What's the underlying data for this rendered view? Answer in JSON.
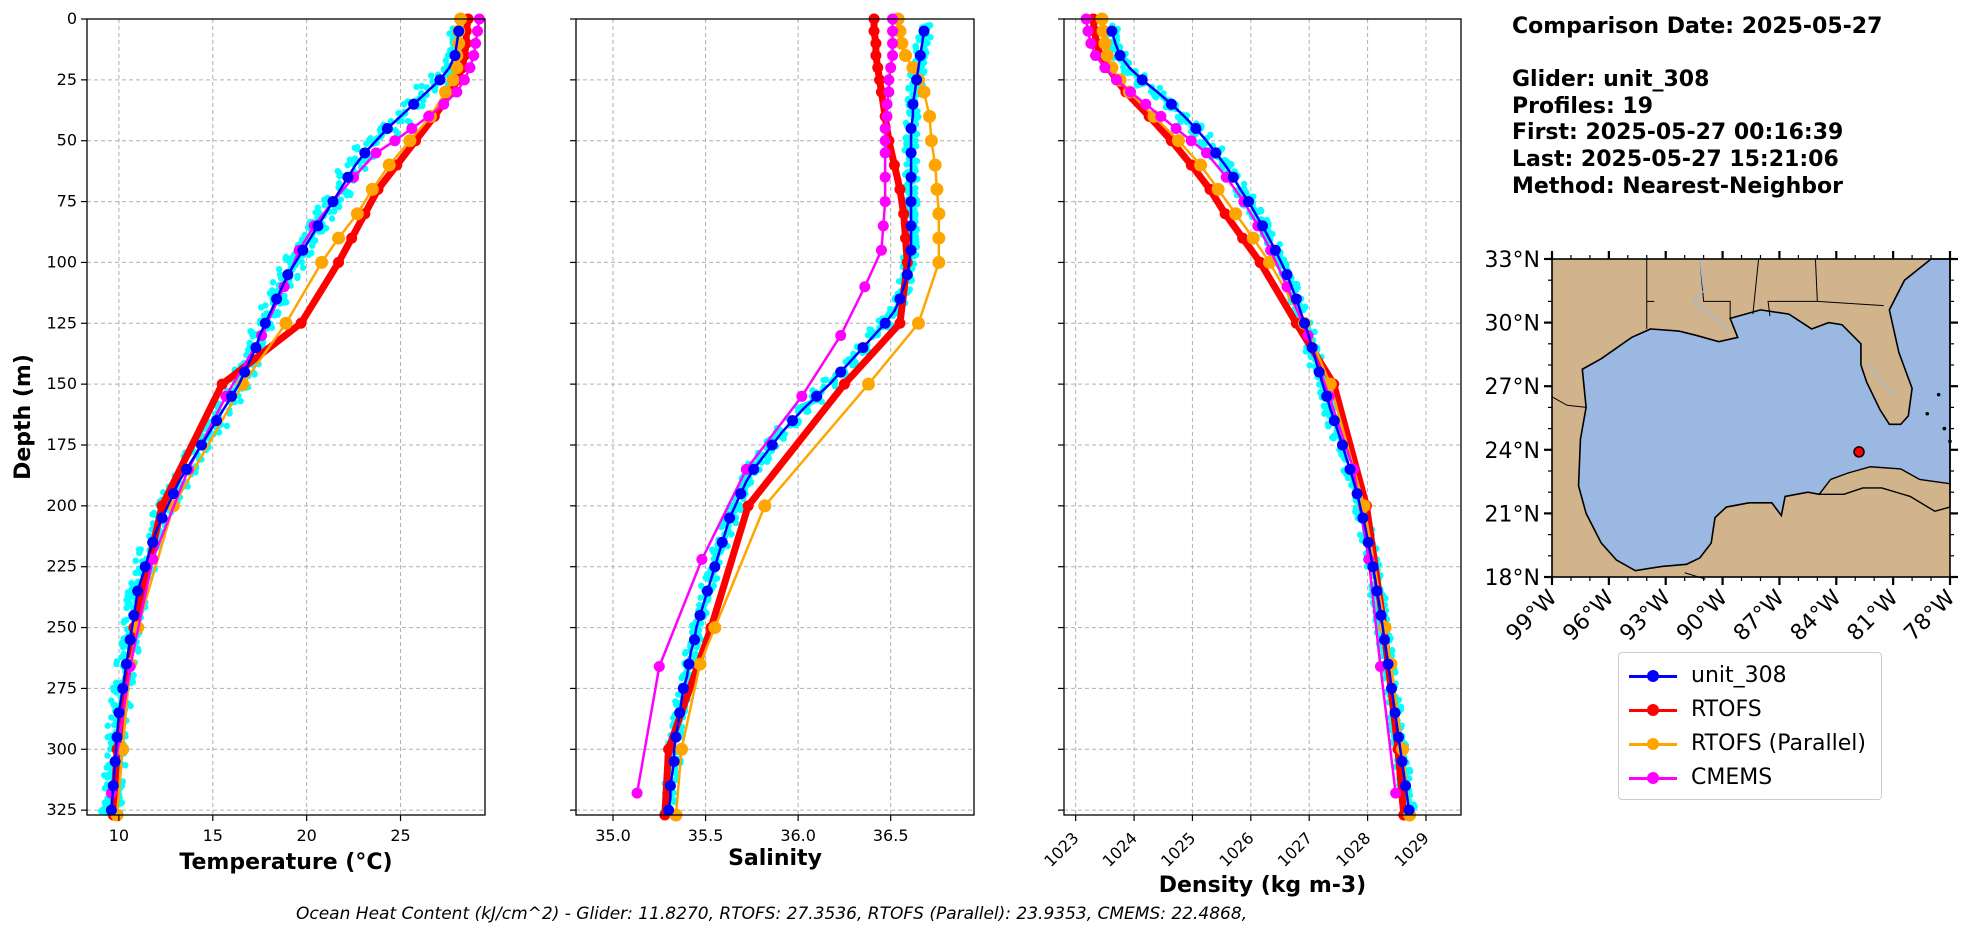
{
  "info": {
    "comparison_date": "Comparison Date: 2025-05-27",
    "glider": "Glider: unit_308",
    "profiles": "Profiles: 19",
    "first": "First: 2025-05-27 00:16:39",
    "last": "Last: 2025-05-27 15:21:06",
    "method": "Method: Nearest-Neighbor"
  },
  "footer": "Ocean Heat Content (kJ/cm^2) - Glider: 11.8270,  RTOFS: 27.3536,  RTOFS (Parallel): 23.9353,  CMEMS: 22.4868,",
  "legend": [
    {
      "label": "unit_308",
      "color": "#0000ff"
    },
    {
      "label": "RTOFS",
      "color": "#ff0000"
    },
    {
      "label": "RTOFS (Parallel)",
      "color": "#ffa500"
    },
    {
      "label": "CMEMS",
      "color": "#ff00ff"
    }
  ],
  "colors": {
    "glider_scatter": "#00ffff",
    "glider": "#0000ff",
    "rtofs": "#ff0000",
    "rtofs_parallel": "#ffa500",
    "cmems": "#ff00ff",
    "land": "#d2b48c",
    "ocean": "#9ab8e2"
  },
  "chart_data": [
    {
      "type": "line",
      "panel": "temperature",
      "xlabel": "Temperature (°C)",
      "ylabel": "Depth (m)",
      "xlim": [
        8.3,
        29.5
      ],
      "ylim": [
        327,
        0
      ],
      "xticks": [
        10,
        15,
        20,
        25
      ],
      "yticks": [
        0,
        25,
        50,
        75,
        100,
        125,
        150,
        175,
        200,
        225,
        250,
        275,
        300,
        325
      ],
      "grid": true,
      "series": [
        {
          "name": "unit_308",
          "depth": [
            5,
            10,
            15,
            20,
            25,
            30,
            35,
            40,
            45,
            50,
            55,
            60,
            65,
            70,
            75,
            80,
            85,
            90,
            95,
            100,
            105,
            110,
            115,
            120,
            125,
            130,
            135,
            140,
            145,
            150,
            155,
            160,
            165,
            170,
            175,
            180,
            185,
            190,
            195,
            200,
            205,
            210,
            215,
            220,
            225,
            230,
            235,
            240,
            245,
            250,
            255,
            260,
            265,
            270,
            275,
            280,
            285,
            290,
            295,
            300,
            305,
            310,
            315,
            320,
            325
          ],
          "values": [
            28.1,
            28.0,
            27.9,
            27.6,
            27.1,
            26.4,
            25.7,
            25.0,
            24.3,
            23.7,
            23.1,
            22.6,
            22.2,
            21.8,
            21.4,
            21.0,
            20.6,
            20.2,
            19.8,
            19.4,
            19.0,
            18.7,
            18.4,
            18.1,
            17.8,
            17.5,
            17.3,
            17.0,
            16.7,
            16.4,
            16.0,
            15.6,
            15.2,
            14.8,
            14.4,
            14.0,
            13.6,
            13.2,
            12.9,
            12.6,
            12.3,
            12.0,
            11.8,
            11.6,
            11.4,
            11.2,
            11.0,
            10.9,
            10.8,
            10.7,
            10.6,
            10.5,
            10.4,
            10.3,
            10.2,
            10.1,
            10.0,
            9.95,
            9.9,
            9.85,
            9.8,
            9.75,
            9.7,
            9.65,
            9.6
          ]
        },
        {
          "name": "RTOFS",
          "depth": [
            0,
            5,
            10,
            15,
            20,
            25,
            30,
            40,
            50,
            60,
            70,
            80,
            90,
            100,
            125,
            150,
            200,
            250,
            300,
            327
          ],
          "values": [
            28.6,
            28.5,
            28.5,
            28.4,
            28.3,
            28.0,
            27.7,
            26.8,
            25.8,
            24.8,
            23.8,
            23.1,
            22.4,
            21.7,
            19.7,
            15.5,
            12.3,
            10.8,
            9.9,
            9.7
          ]
        },
        {
          "name": "RTOFS (Parallel)",
          "depth": [
            0,
            5,
            10,
            15,
            20,
            25,
            30,
            40,
            50,
            60,
            70,
            80,
            90,
            100,
            125,
            150,
            200,
            250,
            265,
            300,
            327
          ],
          "values": [
            28.2,
            28.1,
            28.1,
            28.0,
            28.0,
            27.8,
            27.4,
            26.6,
            25.5,
            24.4,
            23.5,
            22.7,
            21.7,
            20.8,
            18.9,
            16.6,
            12.9,
            11.0,
            10.6,
            10.2,
            9.9
          ]
        },
        {
          "name": "CMEMS",
          "depth": [
            0,
            5,
            10,
            15,
            20,
            25,
            30,
            35,
            40,
            45,
            50,
            55,
            65,
            75,
            85,
            95,
            110,
            130,
            155,
            185,
            222,
            266,
            318
          ],
          "values": [
            29.2,
            29.1,
            29.0,
            28.9,
            28.7,
            28.4,
            28.0,
            27.3,
            26.5,
            25.6,
            24.7,
            23.7,
            22.5,
            21.4,
            20.4,
            19.6,
            18.8,
            17.6,
            15.7,
            13.7,
            11.8,
            10.6,
            9.6
          ]
        }
      ]
    },
    {
      "type": "line",
      "panel": "salinity",
      "xlabel": "Salinity",
      "xlim": [
        34.8,
        36.95
      ],
      "ylim": [
        327,
        0
      ],
      "xticks": [
        35.0,
        35.5,
        36.0,
        36.5
      ],
      "grid": true,
      "series": [
        {
          "name": "unit_308",
          "depth": [
            5,
            10,
            15,
            20,
            25,
            30,
            35,
            40,
            45,
            50,
            55,
            60,
            65,
            70,
            75,
            80,
            85,
            90,
            95,
            100,
            105,
            110,
            115,
            120,
            125,
            130,
            135,
            140,
            145,
            150,
            155,
            160,
            165,
            170,
            175,
            180,
            185,
            190,
            195,
            200,
            205,
            210,
            215,
            220,
            225,
            230,
            235,
            240,
            245,
            250,
            255,
            260,
            265,
            270,
            275,
            280,
            285,
            290,
            295,
            300,
            305,
            310,
            315,
            320,
            325
          ],
          "values": [
            36.68,
            36.67,
            36.66,
            36.65,
            36.64,
            36.63,
            36.62,
            36.62,
            36.61,
            36.61,
            36.61,
            36.61,
            36.61,
            36.61,
            36.61,
            36.61,
            36.61,
            36.61,
            36.61,
            36.6,
            36.59,
            36.57,
            36.55,
            36.52,
            36.47,
            36.41,
            36.35,
            36.29,
            36.23,
            36.17,
            36.1,
            36.03,
            35.97,
            35.91,
            35.86,
            35.81,
            35.76,
            35.72,
            35.69,
            35.66,
            35.63,
            35.61,
            35.59,
            35.57,
            35.55,
            35.53,
            35.51,
            35.49,
            35.47,
            35.45,
            35.44,
            35.42,
            35.41,
            35.4,
            35.38,
            35.37,
            35.36,
            35.35,
            35.34,
            35.33,
            35.33,
            35.32,
            35.31,
            35.31,
            35.3
          ]
        },
        {
          "name": "RTOFS",
          "depth": [
            0,
            5,
            10,
            15,
            20,
            25,
            30,
            40,
            50,
            60,
            70,
            80,
            90,
            100,
            125,
            150,
            200,
            250,
            300,
            327
          ],
          "values": [
            36.41,
            36.41,
            36.42,
            36.42,
            36.43,
            36.44,
            36.45,
            36.47,
            36.49,
            36.52,
            36.55,
            36.57,
            36.58,
            36.59,
            36.55,
            36.25,
            35.73,
            35.53,
            35.3,
            35.28
          ]
        },
        {
          "name": "RTOFS (Parallel)",
          "depth": [
            0,
            5,
            10,
            15,
            20,
            25,
            30,
            40,
            50,
            60,
            70,
            80,
            90,
            100,
            125,
            150,
            200,
            250,
            265,
            300,
            327
          ],
          "values": [
            36.54,
            36.55,
            36.56,
            36.58,
            36.62,
            36.65,
            36.68,
            36.71,
            36.72,
            36.74,
            36.75,
            36.76,
            36.76,
            36.76,
            36.65,
            36.38,
            35.82,
            35.55,
            35.47,
            35.37,
            35.34
          ]
        },
        {
          "name": "CMEMS",
          "depth": [
            0,
            5,
            10,
            15,
            20,
            25,
            30,
            35,
            40,
            45,
            50,
            55,
            65,
            75,
            85,
            95,
            110,
            130,
            155,
            185,
            222,
            266,
            318
          ],
          "values": [
            36.51,
            36.51,
            36.51,
            36.51,
            36.5,
            36.49,
            36.49,
            36.48,
            36.48,
            36.47,
            36.47,
            36.47,
            36.47,
            36.47,
            36.46,
            36.45,
            36.36,
            36.23,
            36.02,
            35.72,
            35.48,
            35.25,
            35.13
          ]
        }
      ]
    },
    {
      "type": "line",
      "panel": "density",
      "xlabel": "Density (kg m-3)",
      "xlim": [
        1022.8,
        1029.6
      ],
      "ylim": [
        327,
        0
      ],
      "xticks": [
        1023,
        1024,
        1025,
        1026,
        1027,
        1028,
        1029
      ],
      "grid": true,
      "series": [
        {
          "name": "unit_308",
          "depth": [
            5,
            10,
            15,
            20,
            25,
            30,
            35,
            40,
            45,
            50,
            55,
            60,
            65,
            70,
            75,
            80,
            85,
            90,
            95,
            100,
            105,
            110,
            115,
            120,
            125,
            130,
            135,
            140,
            145,
            150,
            155,
            160,
            165,
            170,
            175,
            180,
            185,
            190,
            195,
            200,
            205,
            210,
            215,
            220,
            225,
            230,
            235,
            240,
            245,
            250,
            255,
            260,
            265,
            270,
            275,
            280,
            285,
            290,
            295,
            300,
            305,
            310,
            315,
            320,
            325
          ],
          "values": [
            1023.62,
            1023.68,
            1023.76,
            1023.92,
            1024.14,
            1024.4,
            1024.64,
            1024.86,
            1025.06,
            1025.24,
            1025.4,
            1025.56,
            1025.7,
            1025.82,
            1025.96,
            1026.08,
            1026.2,
            1026.31,
            1026.42,
            1026.52,
            1026.62,
            1026.7,
            1026.78,
            1026.85,
            1026.92,
            1026.99,
            1027.05,
            1027.11,
            1027.17,
            1027.23,
            1027.3,
            1027.36,
            1027.43,
            1027.5,
            1027.57,
            1027.63,
            1027.7,
            1027.76,
            1027.82,
            1027.87,
            1027.92,
            1027.97,
            1028.01,
            1028.05,
            1028.09,
            1028.13,
            1028.16,
            1028.2,
            1028.23,
            1028.26,
            1028.29,
            1028.32,
            1028.35,
            1028.38,
            1028.41,
            1028.44,
            1028.47,
            1028.5,
            1028.53,
            1028.56,
            1028.59,
            1028.62,
            1028.65,
            1028.68,
            1028.71
          ]
        },
        {
          "name": "RTOFS",
          "depth": [
            0,
            5,
            10,
            15,
            20,
            25,
            30,
            40,
            50,
            60,
            70,
            80,
            90,
            100,
            125,
            150,
            200,
            250,
            300,
            327
          ],
          "values": [
            1023.3,
            1023.32,
            1023.36,
            1023.42,
            1023.56,
            1023.7,
            1023.86,
            1024.26,
            1024.64,
            1024.98,
            1025.3,
            1025.56,
            1025.86,
            1026.16,
            1026.78,
            1027.42,
            1027.98,
            1028.28,
            1028.52,
            1028.62
          ]
        },
        {
          "name": "RTOFS (Parallel)",
          "depth": [
            0,
            5,
            10,
            15,
            20,
            25,
            30,
            40,
            50,
            60,
            70,
            80,
            90,
            100,
            125,
            150,
            200,
            250,
            265,
            300,
            327
          ],
          "values": [
            1023.45,
            1023.47,
            1023.5,
            1023.54,
            1023.62,
            1023.76,
            1023.92,
            1024.34,
            1024.76,
            1025.14,
            1025.44,
            1025.74,
            1026.04,
            1026.32,
            1026.92,
            1027.36,
            1027.94,
            1028.3,
            1028.4,
            1028.6,
            1028.72
          ]
        },
        {
          "name": "CMEMS",
          "depth": [
            0,
            5,
            10,
            15,
            20,
            25,
            30,
            35,
            40,
            45,
            50,
            55,
            65,
            75,
            85,
            95,
            110,
            130,
            155,
            185,
            222,
            266,
            318
          ],
          "values": [
            1023.18,
            1023.21,
            1023.26,
            1023.34,
            1023.5,
            1023.7,
            1023.94,
            1024.2,
            1024.46,
            1024.72,
            1024.98,
            1025.24,
            1025.58,
            1025.88,
            1026.12,
            1026.34,
            1026.62,
            1026.98,
            1027.34,
            1027.76,
            1028.02,
            1028.22,
            1028.48
          ]
        }
      ]
    },
    {
      "type": "map",
      "panel": "location",
      "lon_range": [
        -99,
        -78
      ],
      "lat_range": [
        18,
        33
      ],
      "xticks": [
        "99°W",
        "96°W",
        "93°W",
        "90°W",
        "87°W",
        "84°W",
        "81°W",
        "78°W"
      ],
      "yticks": [
        "18°N",
        "21°N",
        "24°N",
        "27°N",
        "30°N",
        "33°N"
      ],
      "glider_position": {
        "lon": -82.8,
        "lat": 23.9
      }
    }
  ]
}
